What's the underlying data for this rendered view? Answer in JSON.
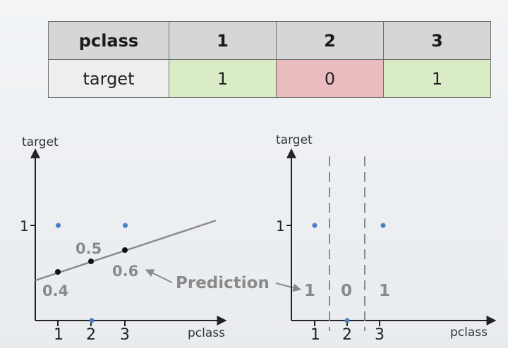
{
  "table": {
    "header": {
      "label": "pclass",
      "cells": [
        "1",
        "2",
        "3"
      ]
    },
    "row": {
      "label": "target",
      "cells": [
        {
          "value": "1",
          "color": "#d9ecc6"
        },
        {
          "value": "0",
          "color": "#ebbcbf"
        },
        {
          "value": "1",
          "color": "#d9ecc6"
        }
      ]
    }
  },
  "left_plot": {
    "ylabel": "target",
    "xlabel": "pclass",
    "ytick": "1",
    "xticks": [
      "1",
      "2",
      "3"
    ],
    "targets": [
      {
        "x": 1,
        "y": 1
      },
      {
        "x": 2,
        "y": 0
      },
      {
        "x": 3,
        "y": 1
      }
    ],
    "predictions": [
      {
        "x": 1,
        "y": 0.4,
        "label": "0.4"
      },
      {
        "x": 2,
        "y": 0.5,
        "label": "0.5"
      },
      {
        "x": 3,
        "y": 0.6,
        "label": "0.6"
      }
    ],
    "annotation": "Prediction"
  },
  "right_plot": {
    "ylabel": "target",
    "xlabel": "pclass",
    "ytick": "1",
    "xticks": [
      "1",
      "2",
      "3"
    ],
    "targets": [
      {
        "x": 1,
        "y": 1
      },
      {
        "x": 2,
        "y": 0
      },
      {
        "x": 3,
        "y": 1
      }
    ],
    "regions": [
      "1",
      "0",
      "1"
    ]
  },
  "colors": {
    "target_point": "#4a7fc1",
    "prediction_point": "#111111",
    "regression_line": "#8a8a8a",
    "annotation": "#8a8a8a",
    "axis": "#222222"
  }
}
